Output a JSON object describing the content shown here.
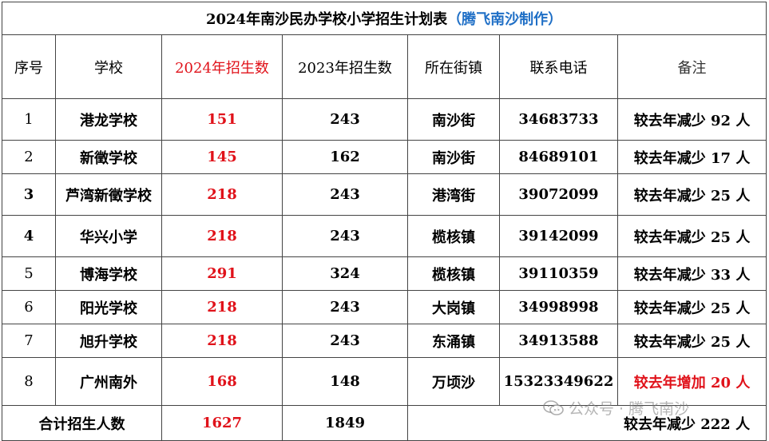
{
  "title": {
    "main": "2024年南沙民办学校小学招生计划表",
    "credit": "（腾飞南沙制作）"
  },
  "headers": [
    "序号",
    "学校",
    "2024年招生数",
    "2023年招生数",
    "所在街镇",
    "联系电话",
    "备注"
  ],
  "rows": [
    {
      "no": "1",
      "school": "港龙学校",
      "y2024": "151",
      "y2023": "243",
      "town": "南沙街",
      "phone": "34683733",
      "note": "较去年减少 92 人"
    },
    {
      "no": "2",
      "school": "新徵学校",
      "y2024": "145",
      "y2023": "162",
      "town": "南沙街",
      "phone": "84689101",
      "note": "较去年减少 17 人"
    },
    {
      "no": "3",
      "school": "芦湾新徵学校",
      "y2024": "218",
      "y2023": "243",
      "town": "港湾街",
      "phone": "39072099",
      "note": "较去年减少 25 人"
    },
    {
      "no": "4",
      "school": "华兴小学",
      "y2024": "218",
      "y2023": "243",
      "town": "榄核镇",
      "phone": "39142099",
      "note": "较去年减少 25 人"
    },
    {
      "no": "5",
      "school": "博海学校",
      "y2024": "291",
      "y2023": "324",
      "town": "榄核镇",
      "phone": "39110359",
      "note": "较去年减少 33 人"
    },
    {
      "no": "6",
      "school": "阳光学校",
      "y2024": "218",
      "y2023": "243",
      "town": "大岗镇",
      "phone": "34998998",
      "note": "较去年减少 25 人"
    },
    {
      "no": "7",
      "school": "旭升学校",
      "y2024": "218",
      "y2023": "243",
      "town": "东涌镇",
      "phone": "34913588",
      "note": "较去年减少 25 人"
    },
    {
      "no": "8",
      "school": "广州南外",
      "y2024": "168",
      "y2023": "148",
      "town": "万顷沙",
      "phone": "15323349622",
      "note": "较去年增加 20 人"
    }
  ],
  "total": {
    "label": "合计招生人数",
    "y2024": "1627",
    "y2023": "1849",
    "note": "较去年减少 222 人"
  },
  "watermark": {
    "text": "公众号 · 腾飞南沙",
    "icon": "wechat-icon"
  },
  "colors": {
    "red": "#e0121a",
    "credit_blue": "#1f6fc6",
    "border": "#444444"
  }
}
